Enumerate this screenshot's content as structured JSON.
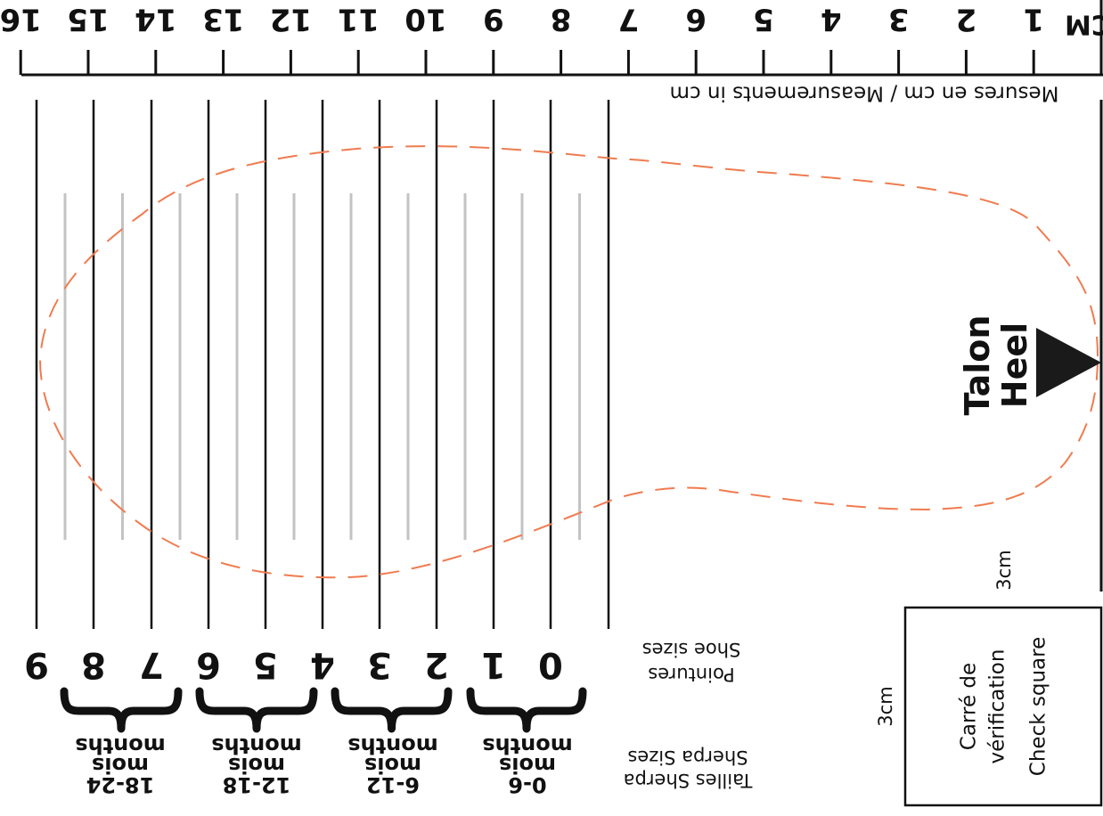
{
  "ruler": {
    "unit_label": "CM",
    "numbers": [
      "1",
      "2",
      "3",
      "4",
      "5",
      "6",
      "7",
      "8",
      "9",
      "10",
      "11",
      "12",
      "13",
      "14",
      "15",
      "16"
    ],
    "caption": "Mesures en cm / Measurements in cm"
  },
  "heel": {
    "label_fr": "Talon",
    "label_en": "Heel"
  },
  "shoe_sizes": {
    "values": [
      "0",
      "1",
      "2",
      "3",
      "4",
      "5",
      "6",
      "7",
      "8",
      "9"
    ],
    "caption_fr": "Pointures",
    "caption_en": "Shoe sizes"
  },
  "sherpa_sizes": {
    "caption_fr": "Tailles Sherpa",
    "caption_en": "Sherpa Sizes",
    "groups": [
      {
        "range": "0-6",
        "fr": "mois",
        "en": "months"
      },
      {
        "range": "6-12",
        "fr": "mois",
        "en": "months"
      },
      {
        "range": "12-18",
        "fr": "mois",
        "en": "months"
      },
      {
        "range": "18-24",
        "fr": "mois",
        "en": "months"
      }
    ]
  },
  "check_square": {
    "label_fr_1": "Carré de",
    "label_fr_2": "vérification",
    "label_en": "Check square",
    "width_label": "3cm",
    "height_label": "3cm"
  },
  "colors": {
    "ink": "#111111",
    "outline_dash": "#f07b4f",
    "guide_gray": "#c3c3c3"
  }
}
